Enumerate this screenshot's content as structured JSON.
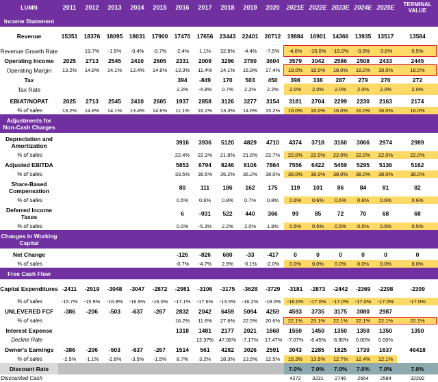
{
  "header": {
    "ticker": "LUMN",
    "years": [
      "2011",
      "2012",
      "2013",
      "2014",
      "2015",
      "2016",
      "2017",
      "2018",
      "2019",
      "2020",
      "2021E",
      "2022E",
      "2023E",
      "2024E",
      "2025E"
    ],
    "terminal_label": "TERMINAL VALUE"
  },
  "colors": {
    "section_purple": "#7030a0",
    "projection_yellow": "#ffd966",
    "highlight_red": "#e0202a",
    "discount_teal": "#8eaaae",
    "label_gray": "#d9d9d9"
  },
  "rows": [
    {
      "type": "section",
      "label": "Income Statement"
    },
    {
      "type": "data",
      "label": "Revenue",
      "style": "bold",
      "values": [
        "15351",
        "18376",
        "18095",
        "18031",
        "17900",
        "17470",
        "17656",
        "23443",
        "22401",
        "20712",
        "19884",
        "16901",
        "14366",
        "13935",
        "13517"
      ],
      "terminal": "13584"
    },
    {
      "type": "data",
      "label": "Revenue Growth Rate",
      "style": "normal",
      "values": [
        "",
        "19.7%",
        "-1.5%",
        "-0.4%",
        "-0.7%",
        "-2.4%",
        "1.1%",
        "32.8%",
        "-4.4%",
        "-7.5%",
        "-4.0%",
        "-15.0%",
        "-15.0%",
        "-3.0%",
        "-3.0%"
      ],
      "terminal": "0.5%"
    },
    {
      "type": "data",
      "label": "Operating Income",
      "style": "bold",
      "values": [
        "2025",
        "2713",
        "2545",
        "2410",
        "2605",
        "2331",
        "2009",
        "3296",
        "3780",
        "3604",
        "3579",
        "3042",
        "2586",
        "2508",
        "2433"
      ],
      "terminal": "2445"
    },
    {
      "type": "data",
      "label": "Operating Margin",
      "style": "normal",
      "values": [
        "13.2%",
        "14.8%",
        "14.1%",
        "13.4%",
        "14.6%",
        "13.3%",
        "11.4%",
        "14.1%",
        "16.9%",
        "17.4%",
        "18.0%",
        "18.0%",
        "18.0%",
        "18.0%",
        "18.0%"
      ],
      "terminal": "18.0%"
    },
    {
      "type": "data",
      "label": "Tax",
      "style": "bold",
      "values": [
        "",
        "",
        "",
        "",
        "",
        "394",
        "-849",
        "170",
        "503",
        "450",
        "398",
        "338",
        "287",
        "279",
        "270"
      ],
      "terminal": "272"
    },
    {
      "type": "data",
      "label": "Tax Rate",
      "style": "normal",
      "values": [
        "",
        "",
        "",
        "",
        "",
        "2.3%",
        "-4.8%",
        "0.7%",
        "2.2%",
        "2.2%",
        "2.0%",
        "2.0%",
        "2.0%",
        "2.0%",
        "2.0%"
      ],
      "terminal": "2.0%"
    },
    {
      "type": "data",
      "label": "EBIAT/NOPAT",
      "style": "bold",
      "values": [
        "2025",
        "2713",
        "2545",
        "2410",
        "2605",
        "1937",
        "2858",
        "3126",
        "3277",
        "3154",
        "3181",
        "2704",
        "2299",
        "2230",
        "2163"
      ],
      "terminal": "2174"
    },
    {
      "type": "data",
      "label": "% of sales",
      "style": "pct",
      "values": [
        "13.2%",
        "14.8%",
        "14.1%",
        "13.4%",
        "14.6%",
        "11.1%",
        "16.2%",
        "13.3%",
        "14.6%",
        "15.2%",
        "16.0%",
        "16.0%",
        "16.0%",
        "16.0%",
        "16.0%"
      ],
      "terminal": "16.0%"
    },
    {
      "type": "section",
      "label": "Adjustments for Non-Cash Charges"
    },
    {
      "type": "data",
      "label": "Depreciation and Amortization",
      "style": "bold",
      "values": [
        "",
        "",
        "",
        "",
        "",
        "3916",
        "3936",
        "5120",
        "4829",
        "4710",
        "4374",
        "3718",
        "3160",
        "3066",
        "2974"
      ],
      "terminal": "2989"
    },
    {
      "type": "data",
      "label": "% of sales",
      "style": "pct",
      "values": [
        "",
        "",
        "",
        "",
        "",
        "22.4%",
        "22.3%",
        "21.8%",
        "21.6%",
        "22.7%",
        "22.0%",
        "22.0%",
        "22.0%",
        "22.0%",
        "22.0%"
      ],
      "terminal": "22.0%"
    },
    {
      "type": "data",
      "label": "Adjusted EBITDA",
      "style": "bold",
      "values": [
        "",
        "",
        "",
        "",
        "",
        "5853",
        "6794",
        "8246",
        "8106",
        "7864",
        "7556",
        "6422",
        "5459",
        "5295",
        "5136"
      ],
      "terminal": "5162"
    },
    {
      "type": "data",
      "label": "% of sales",
      "style": "pct",
      "values": [
        "",
        "",
        "",
        "",
        "",
        "33.5%",
        "38.5%",
        "35.2%",
        "36.2%",
        "38.0%",
        "38.0%",
        "38.0%",
        "38.0%",
        "38.0%",
        "38.0%"
      ],
      "terminal": "38.0%"
    },
    {
      "type": "data",
      "label": "Share-Based Compensation",
      "style": "bold",
      "values": [
        "",
        "",
        "",
        "",
        "",
        "80",
        "111",
        "186",
        "162",
        "175",
        "119",
        "101",
        "86",
        "84",
        "81"
      ],
      "terminal": "82"
    },
    {
      "type": "data",
      "label": "% of sales",
      "style": "pct",
      "values": [
        "",
        "",
        "",
        "",
        "",
        "0.5%",
        "0.6%",
        "0.8%",
        "0.7%",
        "0.8%",
        "0.6%",
        "0.6%",
        "0.6%",
        "0.6%",
        "0.6%"
      ],
      "terminal": "0.6%"
    },
    {
      "type": "data",
      "label": "Deferred Income Taxes",
      "style": "bold",
      "values": [
        "",
        "",
        "",
        "",
        "",
        "6",
        "-931",
        "522",
        "440",
        "366",
        "99",
        "85",
        "72",
        "70",
        "68"
      ],
      "terminal": "68"
    },
    {
      "type": "data",
      "label": "% of sales",
      "style": "pct",
      "values": [
        "",
        "",
        "",
        "",
        "",
        "0.0%",
        "-5.3%",
        "2.2%",
        "2.0%",
        "1.8%",
        "0.5%",
        "0.5%",
        "0.5%",
        "0.5%",
        "0.5%"
      ],
      "terminal": "0.5%"
    },
    {
      "type": "section",
      "label": "Changes in Working Capital"
    },
    {
      "type": "data",
      "label": "Net Change",
      "style": "bold",
      "values": [
        "",
        "",
        "",
        "",
        "",
        "-126",
        "-826",
        "680",
        "-33",
        "-417",
        "0",
        "0",
        "0",
        "0",
        "0"
      ],
      "terminal": "0"
    },
    {
      "type": "data",
      "label": "% of sales",
      "style": "pct",
      "values": [
        "",
        "",
        "",
        "",
        "",
        "-0.7%",
        "-4.7%",
        "2.9%",
        "-0.1%",
        "-2.0%",
        "0.0%",
        "0.0%",
        "0.0%",
        "0.0%",
        "0.0%"
      ],
      "terminal": "0.0%"
    },
    {
      "type": "section",
      "label": "Free Cash Flow"
    },
    {
      "type": "data",
      "label": "Capital Expenditures",
      "style": "bold",
      "values": [
        "-2411",
        "-2919",
        "-3048",
        "-3047",
        "-2872",
        "-2981",
        "-3106",
        "-3175",
        "-3628",
        "-3729",
        "-3181",
        "-2873",
        "-2442",
        "-2369",
        "-2298"
      ],
      "terminal": "-2309"
    },
    {
      "type": "data",
      "label": "% of sales",
      "style": "pct",
      "values": [
        "-15.7%",
        "-15.9%",
        "-16.8%",
        "-16.9%",
        "-16.0%",
        "-17.1%",
        "-17.6%",
        "-13.5%",
        "-16.2%",
        "-18.0%",
        "-16.0%",
        "-17.0%",
        "-17.0%",
        "-17.0%",
        "-17.0%"
      ],
      "terminal": "-17.0%"
    },
    {
      "type": "data",
      "label": "UNLEVERED FCF",
      "style": "bold",
      "values": [
        "-386",
        "-206",
        "-503",
        "-637",
        "-267",
        "2832",
        "2042",
        "6459",
        "5094",
        "4259",
        "4593",
        "3735",
        "3175",
        "3080",
        "2987"
      ],
      "terminal": ""
    },
    {
      "type": "data",
      "label": "% of sales",
      "style": "pct",
      "values": [
        "",
        "",
        "",
        "",
        "",
        "16.2%",
        "11.6%",
        "27.6%",
        "22.5%",
        "20.6%",
        "22.1%",
        "23.1%",
        "22.1%",
        "22.1%",
        "22.1%"
      ],
      "terminal": "22.1%"
    },
    {
      "type": "data",
      "label": "Interest Expense",
      "style": "bold",
      "values": [
        "",
        "",
        "",
        "",
        "",
        "1318",
        "1481",
        "2177",
        "2021",
        "1668",
        "1550",
        "1450",
        "1350",
        "1350",
        "1350"
      ],
      "terminal": "1350"
    },
    {
      "type": "data",
      "label": "Decline Rate",
      "style": "italic",
      "values": [
        "",
        "",
        "",
        "",
        "",
        "",
        "12.37%",
        "47.00%",
        "-7.17%",
        "-17.47%",
        "-7.07%",
        "-6.45%",
        "-6.90%",
        "0.00%",
        "0.00%"
      ],
      "terminal": ""
    },
    {
      "type": "data",
      "label": "Owner's Earnings",
      "style": "bold",
      "values": [
        "-386",
        "-206",
        "-503",
        "-637",
        "-267",
        "1514",
        "561",
        "4282",
        "3026",
        "2591",
        "3043",
        "2285",
        "1825",
        "1730",
        "1637"
      ],
      "terminal": "46418"
    },
    {
      "type": "data",
      "label": "% of sales",
      "style": "pct",
      "values": [
        "-2.5%",
        "-1.1%",
        "-2.8%",
        "-3.5%",
        "-1.5%",
        "8.7%",
        "3.2%",
        "18.3%",
        "13.5%",
        "12.5%",
        "15.3%",
        "13.5%",
        "12.7%",
        "12.4%",
        "12.1%"
      ],
      "terminal": ""
    },
    {
      "type": "data",
      "label": "Discount Rate",
      "style": "disc",
      "values": [
        "",
        "",
        "",
        "",
        "",
        "",
        "",
        "",
        "",
        "",
        "7.0%",
        "7.0%",
        "7.0%",
        "7.0%",
        "7.0%"
      ],
      "terminal": "7.0%"
    },
    {
      "type": "data",
      "label": "Discounted Cash",
      "style": "italic",
      "values": [
        "",
        "",
        "",
        "",
        "",
        "",
        "",
        "",
        "",
        "",
        "4272",
        "3231",
        "2746",
        "2664",
        "2584"
      ],
      "terminal": "32292"
    }
  ]
}
